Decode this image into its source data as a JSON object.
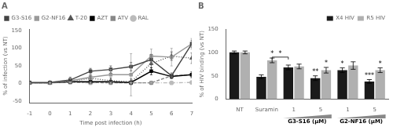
{
  "chart_data": [
    {
      "type": "line",
      "title": "A",
      "xlabel": "Time post infection (h)",
      "ylabel": "% of infection (vs NT)",
      "x": [
        -1,
        0,
        1,
        2,
        3,
        4,
        5,
        6,
        7
      ],
      "series": [
        {
          "name": "G3-S16",
          "color": "#444444",
          "marker": "square",
          "line_style": "solid",
          "values": [
            3,
            3,
            10,
            35,
            40,
            48,
            68,
            22,
            113
          ],
          "yerr": [
            3,
            2,
            8,
            8,
            10,
            12,
            15,
            8,
            10
          ]
        },
        {
          "name": "G2-NF16",
          "color": "#999999",
          "marker": "square",
          "line_style": "solid",
          "values": [
            2,
            2,
            8,
            18,
            25,
            25,
            78,
            75,
            113
          ],
          "yerr": [
            2,
            2,
            8,
            10,
            15,
            60,
            20,
            25,
            15
          ]
        },
        {
          "name": "T-20",
          "color": "#555555",
          "marker": "triangle",
          "line_style": "dotted",
          "values": [
            2,
            2,
            5,
            15,
            8,
            5,
            57,
            78,
            72
          ],
          "yerr": [
            2,
            2,
            5,
            8,
            8,
            8,
            12,
            12,
            15
          ]
        },
        {
          "name": "AZT",
          "color": "#000000",
          "marker": "square",
          "line_style": "solid",
          "values": [
            2,
            2,
            5,
            5,
            5,
            3,
            35,
            20,
            25
          ],
          "yerr": [
            2,
            2,
            3,
            3,
            3,
            3,
            10,
            5,
            8
          ]
        },
        {
          "name": "ATV",
          "color": "#888888",
          "marker": "square",
          "line_style": "dashed",
          "values": [
            2,
            2,
            4,
            3,
            2,
            2,
            2,
            22,
            25
          ],
          "yerr": [
            2,
            2,
            2,
            2,
            2,
            2,
            2,
            5,
            8
          ]
        },
        {
          "name": "RAL",
          "color": "#bbbbbb",
          "marker": "circle",
          "line_style": "dashdot",
          "values": [
            2,
            2,
            3,
            2,
            2,
            2,
            2,
            2,
            3
          ],
          "yerr": [
            1,
            1,
            1,
            1,
            1,
            1,
            1,
            1,
            1
          ]
        }
      ],
      "xlim": [
        -1,
        7
      ],
      "xticks": [
        -1,
        0,
        1,
        2,
        3,
        4,
        5,
        6,
        7
      ],
      "ylim": [
        -55,
        155
      ],
      "yticks": [
        -50,
        0,
        50,
        100,
        150
      ],
      "grid": false,
      "legend": "upper left"
    },
    {
      "type": "bar",
      "title": "B",
      "ylabel": "% of HIV binding (vs NT)",
      "categories": [
        "NT",
        "Suramin",
        "1",
        "5",
        "1",
        "5"
      ],
      "series": [
        {
          "name": "X4 HIV",
          "color": "#1a1a1a",
          "values": [
            100,
            48,
            68,
            45,
            62,
            38
          ],
          "yerr": [
            3,
            4,
            5,
            5,
            5,
            4
          ]
        },
        {
          "name": "R5 HIV",
          "color": "#b0b0b0",
          "values": [
            100,
            83,
            70,
            62,
            72,
            62
          ],
          "yerr": [
            3,
            5,
            5,
            6,
            8,
            5
          ]
        }
      ],
      "ylim": [
        0,
        150
      ],
      "yticks": [
        0,
        50,
        100,
        150
      ],
      "grid": false,
      "legend": "upper right",
      "group_labels": [
        {
          "text": "G3-S16 (μM)",
          "from": 2,
          "to": 3,
          "color": "#888888"
        },
        {
          "text": "G2-NF16 (μM)",
          "from": 4,
          "to": 5,
          "color": "#888888"
        }
      ],
      "annotations": [
        {
          "text": "*",
          "category": 1,
          "series": "R5 HIV"
        },
        {
          "text": "*",
          "from": {
            "category": 1,
            "series": "R5 HIV"
          },
          "to": {
            "category": 2,
            "series": "X4 HIV"
          },
          "y": 90
        },
        {
          "text": "**",
          "category": 3,
          "series": "X4 HIV"
        },
        {
          "text": "*",
          "category": 3,
          "series": "R5 HIV"
        },
        {
          "text": "*",
          "category": 4,
          "series": "X4 HIV"
        },
        {
          "text": "***",
          "category": 5,
          "series": "X4 HIV"
        },
        {
          "text": "*",
          "category": 5,
          "series": "R5 HIV"
        }
      ]
    }
  ]
}
